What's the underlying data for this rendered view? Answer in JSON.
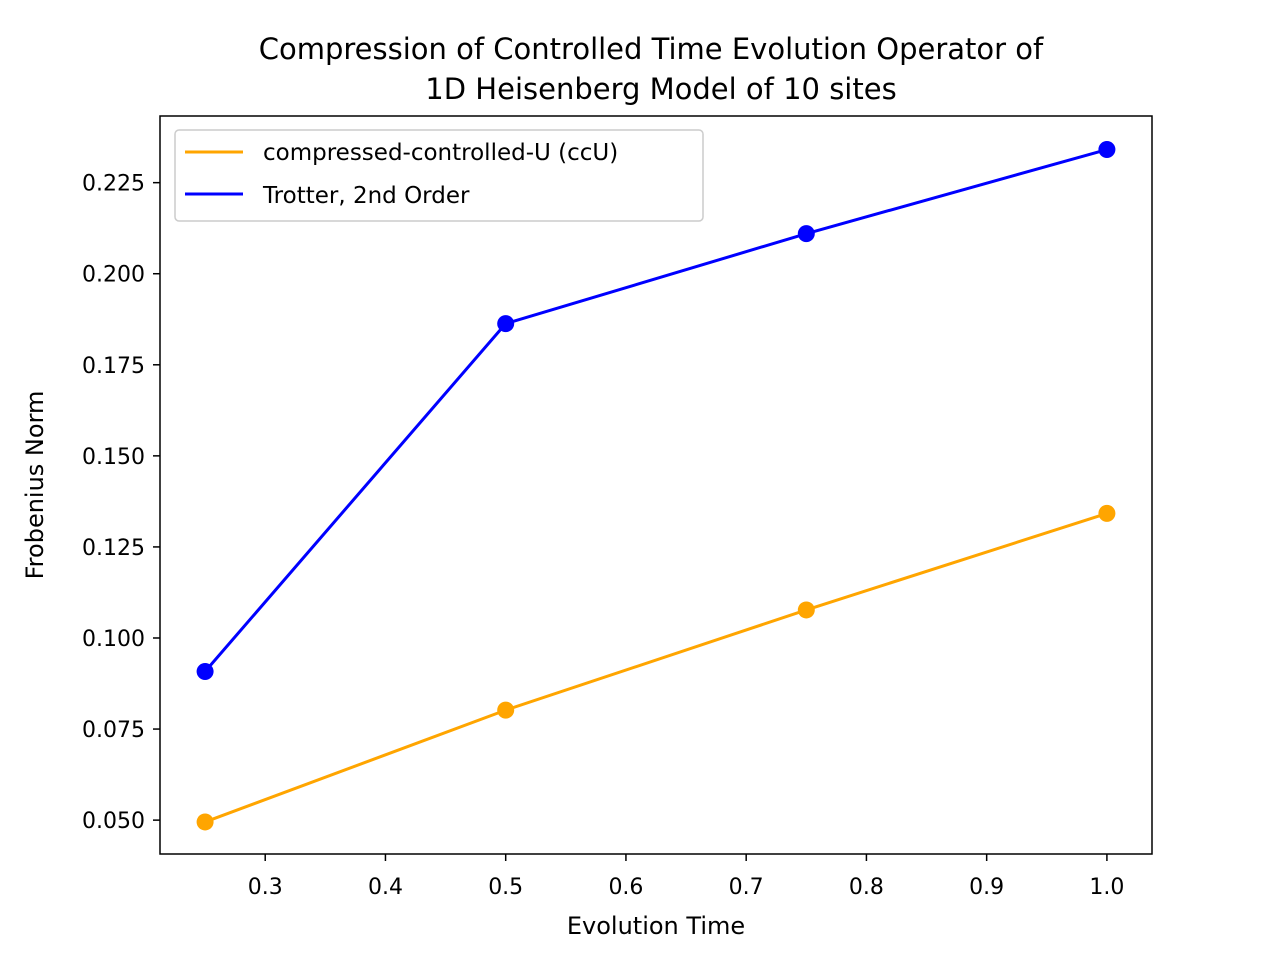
{
  "chart_data": {
    "type": "line",
    "title_lines": [
      "Compression of Controlled Time Evolution Operator of",
      "1D Heisenberg Model of 10 sites"
    ],
    "xlabel": "Evolution Time",
    "ylabel": "Frobenius Norm",
    "xlim": [
      0.2125,
      1.0375
    ],
    "ylim": [
      0.0407,
      0.2433
    ],
    "x_ticks": [
      0.3,
      0.4,
      0.5,
      0.6,
      0.7,
      0.8,
      0.9,
      1.0
    ],
    "x_tick_labels": [
      "0.3",
      "0.4",
      "0.5",
      "0.6",
      "0.7",
      "0.8",
      "0.9",
      "1.0"
    ],
    "y_ticks": [
      0.05,
      0.075,
      0.1,
      0.125,
      0.15,
      0.175,
      0.2,
      0.225
    ],
    "y_tick_labels": [
      "0.050",
      "0.075",
      "0.100",
      "0.125",
      "0.150",
      "0.175",
      "0.200",
      "0.225"
    ],
    "grid": false,
    "legend_position": "upper-left",
    "series": [
      {
        "name": "compressed-controlled-U (ccU)",
        "color": "#ffa500",
        "marker": "circle",
        "x": [
          0.25,
          0.5,
          0.75,
          1.0
        ],
        "y": [
          0.0495,
          0.0802,
          0.1077,
          0.1342
        ]
      },
      {
        "name": "Trotter, 2nd Order",
        "color": "#0000ff",
        "marker": "circle",
        "x": [
          0.25,
          0.5,
          0.75,
          1.0
        ],
        "y": [
          0.0908,
          0.1863,
          0.211,
          0.2341
        ]
      }
    ]
  }
}
